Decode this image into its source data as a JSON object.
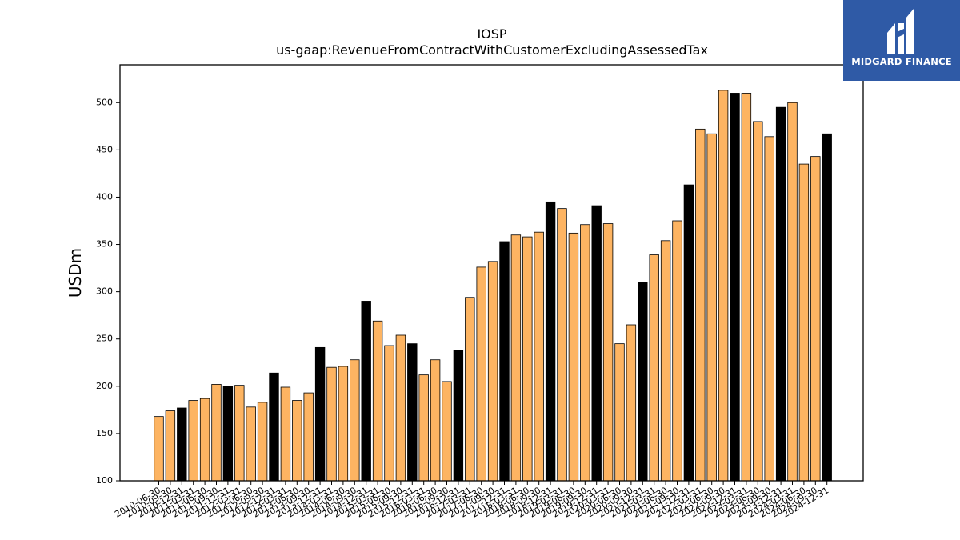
{
  "chart_data": {
    "type": "bar",
    "title": "IOSP",
    "subtitle": "us-gaap:RevenueFromContractWithCustomerExcludingAssessedTax",
    "ylabel": "USDm",
    "xlabel": "",
    "ylim": [
      100,
      540
    ],
    "yticks": [
      100,
      150,
      200,
      250,
      300,
      350,
      400,
      450,
      500
    ],
    "grid": false,
    "colors": {
      "quarter": "#fdb462",
      "annual": "#000000",
      "edge": "#000000"
    },
    "categories": [
      "2010-06-30",
      "2010-09-30",
      "2010-12-31",
      "2011-03-31",
      "2011-06-30",
      "2011-09-30",
      "2011-12-31",
      "2012-03-31",
      "2012-06-30",
      "2012-09-30",
      "2012-12-31",
      "2013-03-31",
      "2013-06-30",
      "2013-09-30",
      "2013-12-31",
      "2014-03-31",
      "2014-06-30",
      "2014-09-30",
      "2014-12-31",
      "2015-03-31",
      "2015-06-30",
      "2015-09-30",
      "2015-12-31",
      "2016-03-31",
      "2016-06-30",
      "2016-09-30",
      "2016-12-31",
      "2017-03-31",
      "2017-06-30",
      "2017-09-30",
      "2017-12-31",
      "2018-03-31",
      "2018-06-30",
      "2018-09-30",
      "2018-12-31",
      "2019-03-31",
      "2019-06-30",
      "2019-09-30",
      "2019-12-31",
      "2020-03-31",
      "2020-06-30",
      "2020-09-30",
      "2020-12-31",
      "2021-03-31",
      "2021-06-30",
      "2021-09-30",
      "2021-12-31",
      "2022-03-31",
      "2022-06-30",
      "2022-09-30",
      "2022-12-31",
      "2023-03-31",
      "2023-06-30",
      "2023-09-30",
      "2023-12-31",
      "2024-03-31",
      "2024-06-30",
      "2024-09-30",
      "2024-12-31"
    ],
    "values": [
      168,
      174,
      177,
      185,
      187,
      202,
      200,
      201,
      178,
      183,
      214,
      199,
      185,
      193,
      241,
      220,
      221,
      228,
      290,
      269,
      243,
      254,
      245,
      212,
      228,
      205,
      238,
      294,
      326,
      332,
      353,
      360,
      358,
      363,
      395,
      388,
      362,
      371,
      391,
      372,
      245,
      265,
      310,
      339,
      354,
      375,
      413,
      472,
      467,
      513,
      510,
      510,
      480,
      464,
      495,
      500,
      435,
      443,
      467
    ],
    "annual_flags": [
      0,
      0,
      1,
      0,
      0,
      0,
      1,
      0,
      0,
      0,
      1,
      0,
      0,
      0,
      1,
      0,
      0,
      0,
      1,
      0,
      0,
      0,
      1,
      0,
      0,
      0,
      1,
      0,
      0,
      0,
      1,
      0,
      0,
      0,
      1,
      0,
      0,
      0,
      1,
      0,
      0,
      0,
      1,
      0,
      0,
      0,
      1,
      0,
      0,
      0,
      1,
      0,
      0,
      0,
      1,
      0,
      0,
      0,
      1
    ]
  },
  "logo": {
    "text": "MIDGARD FINANCE"
  }
}
